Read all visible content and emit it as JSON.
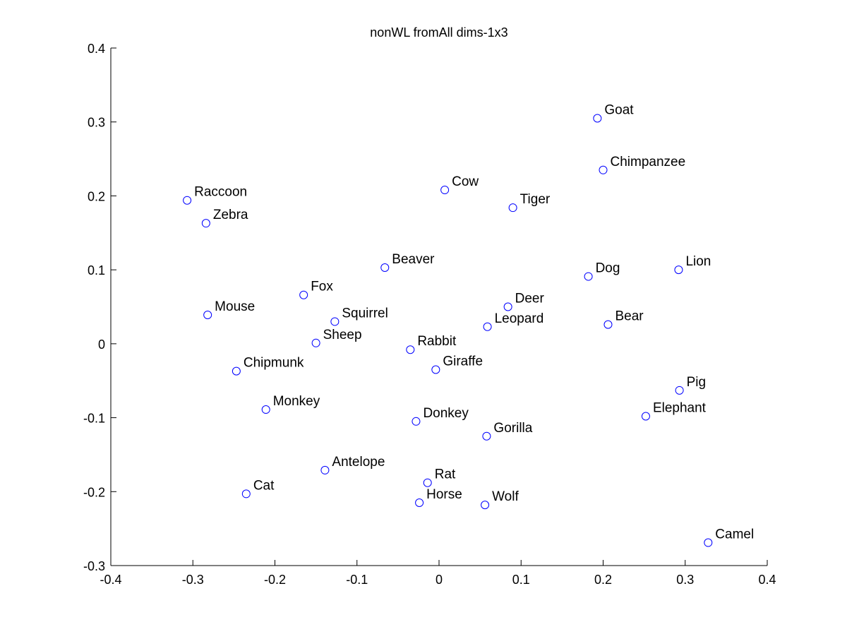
{
  "chart_data": {
    "type": "scatter",
    "title": "nonWL fromAll dims-1x3",
    "xlabel": "",
    "ylabel": "",
    "xlim": [
      -0.4,
      0.4
    ],
    "ylim": [
      -0.3,
      0.4
    ],
    "x_ticks": [
      "-0.4",
      "-0.3",
      "-0.2",
      "-0.1",
      "0",
      "0.1",
      "0.2",
      "0.3",
      "0.4"
    ],
    "y_ticks": [
      "-0.3",
      "-0.2",
      "-0.1",
      "0",
      "0.1",
      "0.2",
      "0.3",
      "0.4"
    ],
    "grid": false,
    "box": "left-bottom axes only",
    "marker": "open-circle",
    "marker_color": "#0000ff",
    "label_color": "#000000",
    "points": [
      {
        "label": "Goat",
        "x": 0.193,
        "y": 0.305
      },
      {
        "label": "Chimpanzee",
        "x": 0.2,
        "y": 0.235
      },
      {
        "label": "Raccoon",
        "x": -0.307,
        "y": 0.194
      },
      {
        "label": "Cow",
        "x": 0.007,
        "y": 0.208
      },
      {
        "label": "Tiger",
        "x": 0.09,
        "y": 0.184
      },
      {
        "label": "Zebra",
        "x": -0.284,
        "y": 0.163
      },
      {
        "label": "Beaver",
        "x": -0.066,
        "y": 0.103
      },
      {
        "label": "Dog",
        "x": 0.182,
        "y": 0.091
      },
      {
        "label": "Lion",
        "x": 0.292,
        "y": 0.1
      },
      {
        "label": "Fox",
        "x": -0.165,
        "y": 0.066
      },
      {
        "label": "Mouse",
        "x": -0.282,
        "y": 0.039
      },
      {
        "label": "Squirrel",
        "x": -0.127,
        "y": 0.03
      },
      {
        "label": "Deer",
        "x": 0.084,
        "y": 0.05
      },
      {
        "label": "Leopard",
        "x": 0.059,
        "y": 0.023
      },
      {
        "label": "Bear",
        "x": 0.206,
        "y": 0.026
      },
      {
        "label": "Sheep",
        "x": -0.15,
        "y": 0.001
      },
      {
        "label": "Rabbit",
        "x": -0.035,
        "y": -0.008
      },
      {
        "label": "Giraffe",
        "x": -0.004,
        "y": -0.035
      },
      {
        "label": "Chipmunk",
        "x": -0.247,
        "y": -0.037
      },
      {
        "label": "Pig",
        "x": 0.293,
        "y": -0.063
      },
      {
        "label": "Monkey",
        "x": -0.211,
        "y": -0.089
      },
      {
        "label": "Elephant",
        "x": 0.252,
        "y": -0.098
      },
      {
        "label": "Donkey",
        "x": -0.028,
        "y": -0.105
      },
      {
        "label": "Gorilla",
        "x": 0.058,
        "y": -0.125
      },
      {
        "label": "Antelope",
        "x": -0.139,
        "y": -0.171
      },
      {
        "label": "Rat",
        "x": -0.014,
        "y": -0.188
      },
      {
        "label": "Cat",
        "x": -0.235,
        "y": -0.203
      },
      {
        "label": "Horse",
        "x": -0.024,
        "y": -0.215
      },
      {
        "label": "Wolf",
        "x": 0.056,
        "y": -0.218
      },
      {
        "label": "Camel",
        "x": 0.328,
        "y": -0.269
      }
    ]
  }
}
